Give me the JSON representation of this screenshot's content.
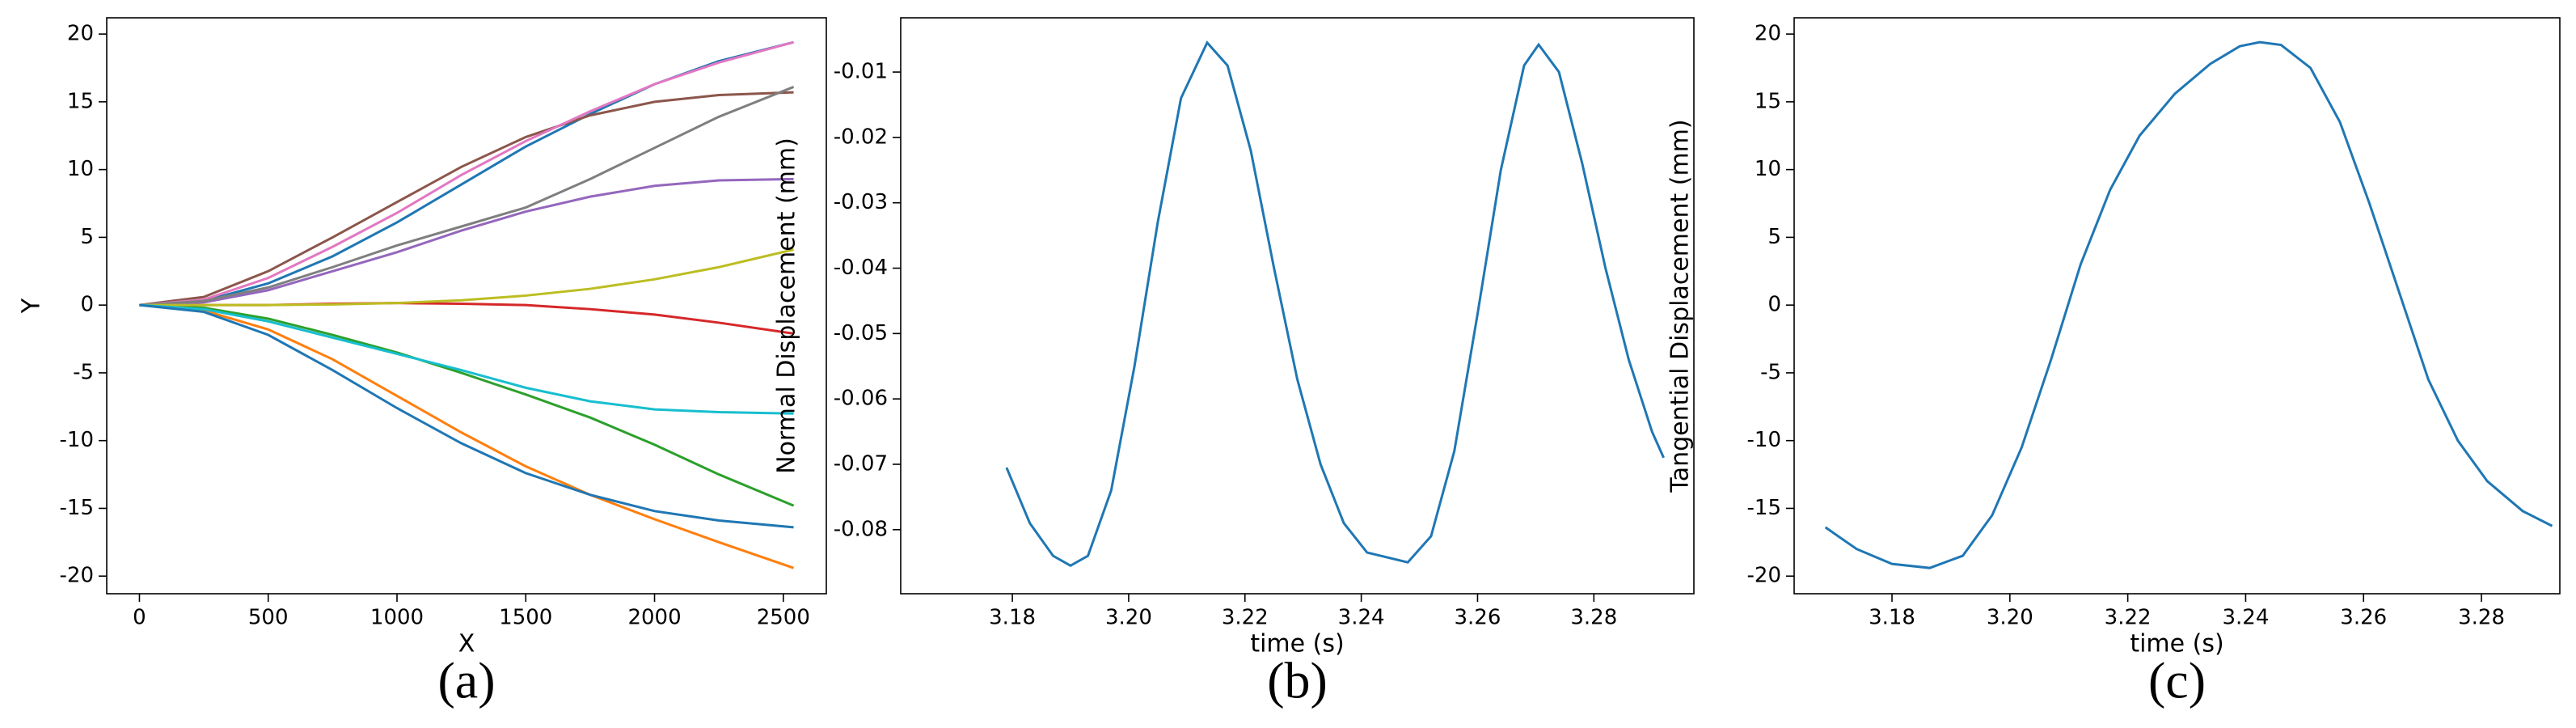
{
  "chart_data": [
    {
      "type": "line",
      "xlabel": "X",
      "ylabel": "Y",
      "caption": "(a)",
      "xlim": [
        -127,
        2667
      ],
      "ylim": [
        -21.3,
        21.2
      ],
      "xticks": [
        0,
        500,
        1000,
        1500,
        2000,
        2500
      ],
      "yticks": [
        -20,
        -15,
        -10,
        -5,
        0,
        5,
        10,
        15,
        20
      ],
      "x": [
        0,
        250,
        500,
        750,
        1000,
        1250,
        1500,
        1750,
        2000,
        2250,
        2540
      ],
      "series": [
        {
          "color": "#1f77b4",
          "values": [
            0,
            0.3,
            1.6,
            3.6,
            6.1,
            8.9,
            11.7,
            14.1,
            16.3,
            18.0,
            19.4
          ]
        },
        {
          "color": "#ff7f0e",
          "values": [
            0,
            -0.4,
            -1.8,
            -4,
            -6.7,
            -9.4,
            -11.9,
            -14,
            -15.8,
            -17.5,
            -19.4
          ]
        },
        {
          "color": "#2ca02c",
          "values": [
            0,
            -0.2,
            -1,
            -2.2,
            -3.5,
            -5,
            -6.6,
            -8.3,
            -10.3,
            -12.5,
            -14.8
          ]
        },
        {
          "color": "#d62728",
          "values": [
            0,
            0,
            0,
            0.1,
            0.15,
            0.1,
            0,
            -0.3,
            -0.7,
            -1.3,
            -2.1
          ]
        },
        {
          "color": "#9467bd",
          "values": [
            0,
            0.2,
            1.1,
            2.5,
            3.9,
            5.5,
            6.9,
            8,
            8.8,
            9.2,
            9.3
          ]
        },
        {
          "color": "#8c564b",
          "values": [
            0,
            0.6,
            2.5,
            5,
            7.6,
            10.2,
            12.4,
            14,
            15,
            15.5,
            15.7
          ]
        },
        {
          "color": "#e377c2",
          "values": [
            0,
            0.4,
            2,
            4.3,
            6.8,
            9.6,
            12.1,
            14.3,
            16.3,
            17.9,
            19.4
          ]
        },
        {
          "color": "#7f7f7f",
          "values": [
            0,
            0.3,
            1.3,
            2.8,
            4.4,
            5.8,
            7.2,
            9.3,
            11.6,
            13.9,
            16.1
          ]
        },
        {
          "color": "#bcbd22",
          "values": [
            0,
            0,
            0,
            0.05,
            0.15,
            0.35,
            0.7,
            1.2,
            1.9,
            2.8,
            4.1
          ]
        },
        {
          "color": "#17becf",
          "values": [
            0,
            -0.3,
            -1.2,
            -2.4,
            -3.6,
            -4.8,
            -6.1,
            -7.1,
            -7.7,
            -7.9,
            -8
          ]
        },
        {
          "color": "#1f77b4",
          "values": [
            0,
            -0.5,
            -2.2,
            -4.8,
            -7.6,
            -10.2,
            -12.4,
            -14,
            -15.2,
            -15.9,
            -16.4
          ]
        }
      ]
    },
    {
      "type": "line",
      "xlabel": "time (s)",
      "ylabel": "Normal Displacement (mm)",
      "caption": "(b)",
      "xlim": [
        3.1608,
        3.2972
      ],
      "ylim": [
        -0.0898,
        -0.0017
      ],
      "xticks": [
        3.18,
        {
          "value": 3.2,
          "label": "3.20"
        },
        3.22,
        3.24,
        3.26,
        3.28
      ],
      "yticks": [
        -0.08,
        -0.07,
        -0.06,
        -0.05,
        -0.04,
        -0.03,
        -0.02,
        -0.01
      ],
      "x": [
        3.179,
        3.183,
        3.187,
        3.19,
        3.193,
        3.197,
        3.201,
        3.205,
        3.209,
        3.2135,
        3.217,
        3.221,
        3.225,
        3.229,
        3.233,
        3.237,
        3.241,
        3.248,
        3.252,
        3.256,
        3.26,
        3.264,
        3.268,
        3.2705,
        3.274,
        3.278,
        3.282,
        3.286,
        3.29,
        3.292
      ],
      "series": [
        {
          "color": "#1f77b4",
          "values": [
            -0.0705,
            -0.079,
            -0.084,
            -0.0855,
            -0.084,
            -0.074,
            -0.055,
            -0.033,
            -0.014,
            -0.0055,
            -0.009,
            -0.022,
            -0.04,
            -0.057,
            -0.07,
            -0.079,
            -0.0835,
            -0.085,
            -0.081,
            -0.068,
            -0.047,
            -0.025,
            -0.009,
            -0.0058,
            -0.01,
            -0.024,
            -0.04,
            -0.054,
            -0.065,
            -0.069
          ]
        }
      ]
    },
    {
      "type": "line",
      "xlabel": "time (s)",
      "ylabel": "Tangential Displacement (mm)",
      "caption": "(c)",
      "xlim": [
        3.1634,
        3.2933
      ],
      "ylim": [
        -21.3,
        21.2
      ],
      "xticks": [
        3.18,
        {
          "value": 3.2,
          "label": "3.20"
        },
        3.22,
        3.24,
        3.26,
        3.28
      ],
      "yticks": [
        -20,
        -15,
        -10,
        -5,
        0,
        5,
        10,
        15,
        20
      ],
      "x": [
        3.1687,
        3.174,
        3.18,
        3.1864,
        3.192,
        3.197,
        3.202,
        3.207,
        3.212,
        3.217,
        3.222,
        3.228,
        3.234,
        3.239,
        3.2424,
        3.246,
        3.251,
        3.256,
        3.261,
        3.266,
        3.271,
        3.276,
        3.281,
        3.287,
        3.292
      ],
      "series": [
        {
          "color": "#1f77b4",
          "values": [
            -16.4,
            -18.0,
            -19.1,
            -19.4,
            -18.5,
            -15.5,
            -10.5,
            -4.0,
            3.0,
            8.5,
            12.5,
            15.6,
            17.8,
            19.1,
            19.4,
            19.2,
            17.5,
            13.5,
            7.5,
            1.0,
            -5.5,
            -10.0,
            -13.0,
            -15.2,
            -16.3
          ]
        }
      ]
    }
  ]
}
